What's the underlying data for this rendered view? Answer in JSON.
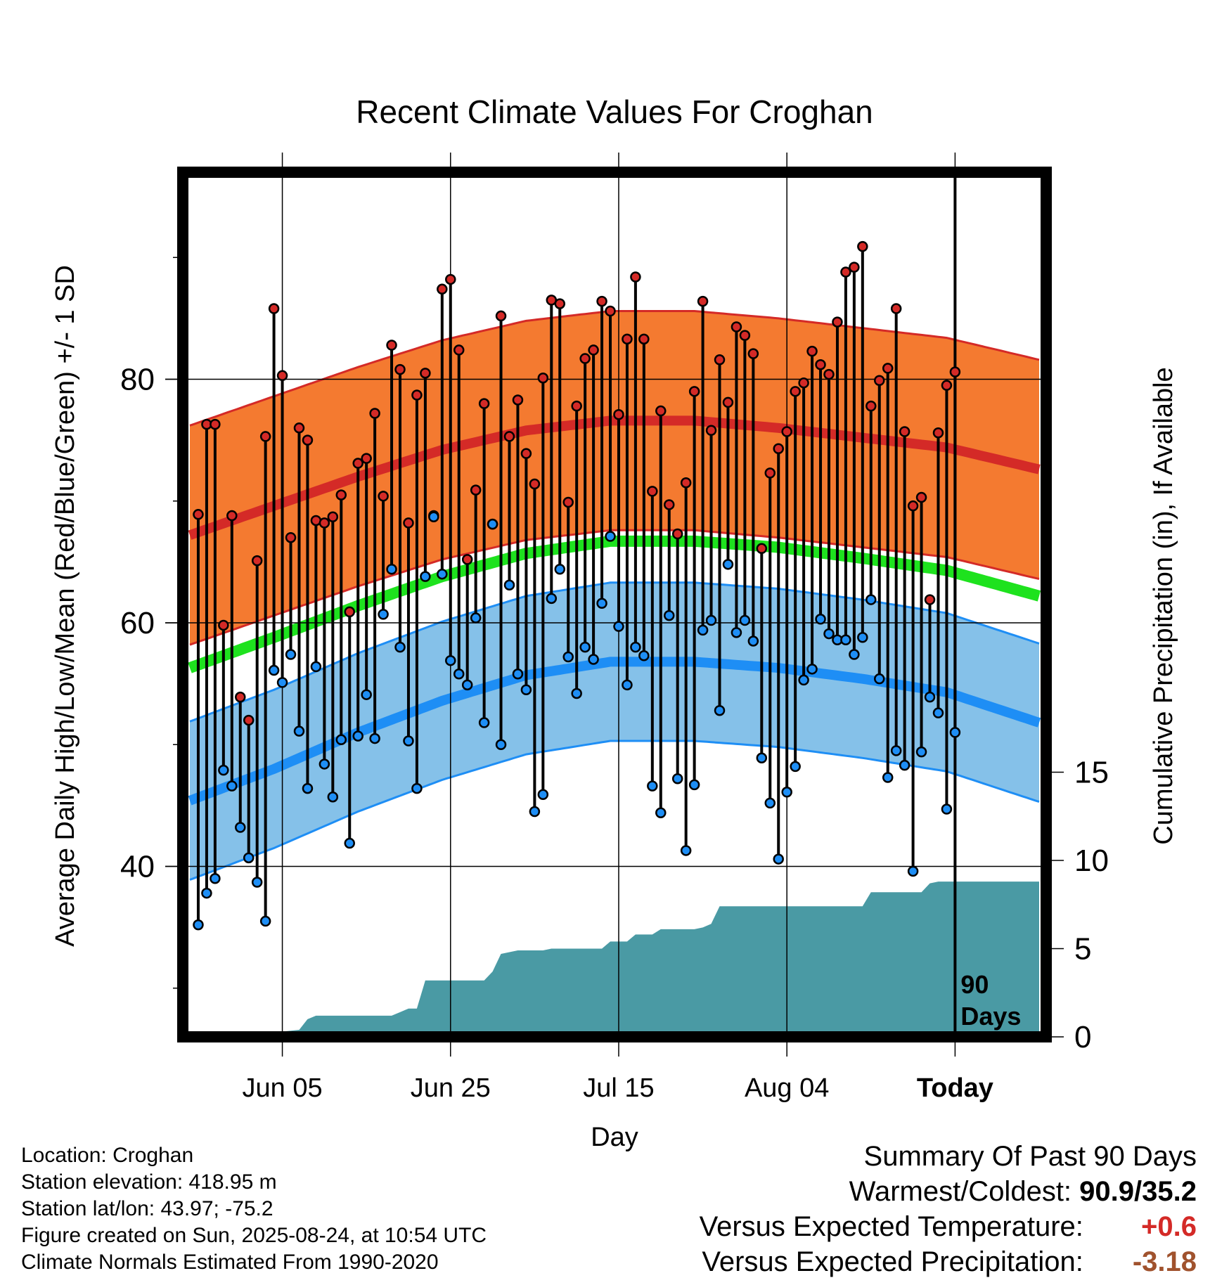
{
  "chart_data": {
    "type": "line",
    "title": "Recent Climate Values For Croghan",
    "xlabel": "Day",
    "ylabel": "Average Daily High/Low/Mean (Red/Blue/Green) +/- 1 SD",
    "y2label": "Cumulative Precipitation (in), If Available",
    "ylim": [
      26,
      97
    ],
    "y2lim": [
      0,
      49
    ],
    "yticks": [
      40,
      60,
      80
    ],
    "y2ticks": [
      0,
      5,
      10,
      15
    ],
    "x_start_date": "2025-05-25",
    "xticks": [
      {
        "day": 11,
        "label": "Jun 05"
      },
      {
        "day": 31,
        "label": "Jun 25"
      },
      {
        "day": 51,
        "label": "Jul 15"
      },
      {
        "day": 71,
        "label": "Aug 04"
      },
      {
        "day": 91,
        "label": "Today"
      }
    ],
    "xlim": [
      0,
      101
    ],
    "today_day": 91,
    "today_marker_label": [
      "90",
      "Days"
    ],
    "colors": {
      "high_band": "#f47a30",
      "high_mean": "#d42a27",
      "mean": "#1ee21e",
      "low_band": "#85c1e9",
      "low_mean": "#1e8ef5",
      "precip": "#4a9aa4",
      "high_point": "#d42a27",
      "low_point": "#1e8ef5",
      "precip_diff": "#a0522d",
      "temp_diff": "#d42a27"
    },
    "normals": {
      "days": [
        0,
        10,
        20,
        30,
        40,
        50,
        60,
        70,
        80,
        90,
        101
      ],
      "high_mean": [
        67.2,
        69.6,
        72.0,
        74.2,
        75.8,
        76.6,
        76.6,
        76.0,
        75.2,
        74.4,
        72.6
      ],
      "high_sd": 9,
      "low_mean": [
        45.4,
        48.0,
        51.0,
        53.6,
        55.7,
        56.8,
        56.8,
        56.3,
        55.4,
        54.3,
        51.8
      ],
      "low_sd": 6.5,
      "mean": [
        56.3,
        58.8,
        61.4,
        63.8,
        65.7,
        66.7,
        66.7,
        66.2,
        65.3,
        64.3,
        62.2
      ]
    },
    "series": [
      {
        "name": "Daily High",
        "days": [
          1,
          2,
          3,
          4,
          5,
          6,
          7,
          8,
          9,
          10,
          11,
          12,
          13,
          14,
          15,
          16,
          17,
          18,
          19,
          20,
          21,
          22,
          23,
          24,
          25,
          26,
          27,
          28,
          29,
          30,
          31,
          32,
          33,
          34,
          35,
          36,
          37,
          38,
          39,
          40,
          41,
          42,
          43,
          44,
          45,
          46,
          47,
          48,
          49,
          50,
          51,
          52,
          53,
          54,
          55,
          56,
          57,
          58,
          59,
          60,
          61,
          62,
          63,
          64,
          65,
          66,
          67,
          68,
          69,
          70,
          71,
          72,
          73,
          74,
          75,
          76,
          77,
          78,
          79,
          80,
          81,
          82,
          83,
          84,
          85,
          86,
          87,
          88,
          89,
          90,
          91
        ],
        "values": [
          68.9,
          76.3,
          76.3,
          59.8,
          68.8,
          53.9,
          52.0,
          65.1,
          75.3,
          85.8,
          80.3,
          67.0,
          76.0,
          75.0,
          68.4,
          68.2,
          68.7,
          70.5,
          60.9,
          73.1,
          73.5,
          77.2,
          70.4,
          82.8,
          80.8,
          68.2,
          78.7,
          80.5,
          68.8,
          87.4,
          88.2,
          82.4,
          65.2,
          70.9,
          78.0,
          68.1,
          85.2,
          75.3,
          78.3,
          73.9,
          71.4,
          80.1,
          86.5,
          86.2,
          69.9,
          77.8,
          81.7,
          82.4,
          86.4,
          85.6,
          77.1,
          83.3,
          88.4,
          83.3,
          70.8,
          77.4,
          69.7,
          67.3,
          71.5,
          79.0,
          86.4,
          75.8,
          81.6,
          78.1,
          84.3,
          83.6,
          82.1,
          66.1,
          72.3,
          74.3,
          75.7,
          79.0,
          79.7,
          82.3,
          81.2,
          80.4,
          84.7,
          88.8,
          89.2,
          90.9,
          77.8,
          79.9,
          80.9,
          85.8,
          75.7,
          69.6,
          70.3,
          61.9,
          75.6,
          79.5,
          80.6
        ]
      },
      {
        "name": "Daily Low",
        "days": [
          1,
          2,
          3,
          4,
          5,
          6,
          7,
          8,
          9,
          10,
          11,
          12,
          13,
          14,
          15,
          16,
          17,
          18,
          19,
          20,
          21,
          22,
          23,
          24,
          25,
          26,
          27,
          28,
          29,
          30,
          31,
          32,
          33,
          34,
          35,
          36,
          37,
          38,
          39,
          40,
          41,
          42,
          43,
          44,
          45,
          46,
          47,
          48,
          49,
          50,
          51,
          52,
          53,
          54,
          55,
          56,
          57,
          58,
          59,
          60,
          61,
          62,
          63,
          64,
          65,
          66,
          67,
          68,
          69,
          70,
          71,
          72,
          73,
          74,
          75,
          76,
          77,
          78,
          79,
          80,
          81,
          82,
          83,
          84,
          85,
          86,
          87,
          88,
          89,
          90,
          91
        ],
        "values": [
          35.2,
          37.8,
          39.0,
          47.9,
          46.6,
          43.2,
          40.7,
          38.7,
          35.5,
          56.1,
          55.1,
          57.4,
          51.1,
          46.4,
          56.4,
          48.4,
          45.7,
          50.4,
          41.9,
          50.7,
          54.1,
          50.5,
          60.7,
          64.4,
          58.0,
          50.3,
          46.4,
          63.8,
          68.7,
          64.0,
          56.9,
          55.8,
          54.9,
          60.4,
          51.8,
          68.1,
          50.0,
          63.1,
          55.8,
          54.5,
          44.5,
          45.9,
          62.0,
          64.4,
          57.2,
          54.2,
          58.0,
          57.0,
          61.6,
          67.1,
          59.7,
          54.9,
          58.0,
          57.3,
          46.6,
          44.4,
          60.6,
          47.2,
          41.3,
          46.7,
          59.4,
          60.2,
          52.8,
          64.8,
          59.2,
          60.2,
          58.5,
          48.9,
          45.2,
          40.6,
          46.1,
          48.2,
          55.3,
          56.2,
          60.3,
          59.1,
          58.6,
          58.6,
          57.4,
          58.8,
          61.9,
          55.4,
          47.3,
          49.5,
          48.3,
          39.6,
          49.4,
          53.9,
          52.6,
          44.7,
          51.0
        ]
      },
      {
        "name": "Cumulative Precipitation",
        "days": [
          0,
          1,
          2,
          3,
          4,
          5,
          6,
          7,
          8,
          9,
          10,
          11,
          12,
          13,
          14,
          15,
          16,
          17,
          18,
          19,
          20,
          21,
          22,
          23,
          24,
          25,
          26,
          27,
          28,
          29,
          30,
          31,
          32,
          33,
          34,
          35,
          36,
          37,
          38,
          39,
          40,
          41,
          42,
          43,
          44,
          45,
          46,
          47,
          48,
          49,
          50,
          51,
          52,
          53,
          54,
          55,
          56,
          57,
          58,
          59,
          60,
          61,
          62,
          63,
          64,
          65,
          66,
          67,
          68,
          69,
          70,
          71,
          72,
          73,
          74,
          75,
          76,
          77,
          78,
          79,
          80,
          81,
          82,
          83,
          84,
          85,
          86,
          87,
          88,
          89,
          90,
          91,
          101
        ],
        "values": [
          0,
          0,
          0,
          0,
          0,
          0,
          0.1,
          0.2,
          0.2,
          0.2,
          0.2,
          0.3,
          0.35,
          0.4,
          1.0,
          1.2,
          1.2,
          1.2,
          1.2,
          1.2,
          1.2,
          1.2,
          1.2,
          1.2,
          1.2,
          1.4,
          1.6,
          1.6,
          3.2,
          3.2,
          3.2,
          3.2,
          3.2,
          3.2,
          3.2,
          3.2,
          3.7,
          4.7,
          4.8,
          4.9,
          4.9,
          4.9,
          4.9,
          5.0,
          5.0,
          5.0,
          5.0,
          5.0,
          5.0,
          5.0,
          5.4,
          5.4,
          5.4,
          5.8,
          5.8,
          5.8,
          6.1,
          6.1,
          6.1,
          6.1,
          6.1,
          6.2,
          6.4,
          7.4,
          7.4,
          7.4,
          7.4,
          7.4,
          7.4,
          7.4,
          7.4,
          7.4,
          7.4,
          7.4,
          7.4,
          7.4,
          7.4,
          7.4,
          7.4,
          7.4,
          7.4,
          8.2,
          8.2,
          8.2,
          8.2,
          8.2,
          8.2,
          8.2,
          8.7,
          8.8,
          8.8,
          8.8,
          8.8
        ]
      }
    ]
  },
  "info": {
    "location": "Location: Croghan",
    "elevation": "Station elevation: 418.95 m",
    "latlon": "Station lat/lon: 43.97; -75.2",
    "created": "Figure created on Sun, 2025-08-24, at 10:54 UTC",
    "normals": "Climate Normals Estimated From 1990-2020"
  },
  "summary": {
    "title": "Summary Of Past 90 Days",
    "warm_cold_label": "Warmest/Coldest:",
    "warm_cold_value": "90.9/35.2",
    "temp_label": "Versus Expected Temperature:",
    "temp_value": "+0.6",
    "precip_label": "Versus Expected Precipitation:",
    "precip_value": "-3.18"
  }
}
